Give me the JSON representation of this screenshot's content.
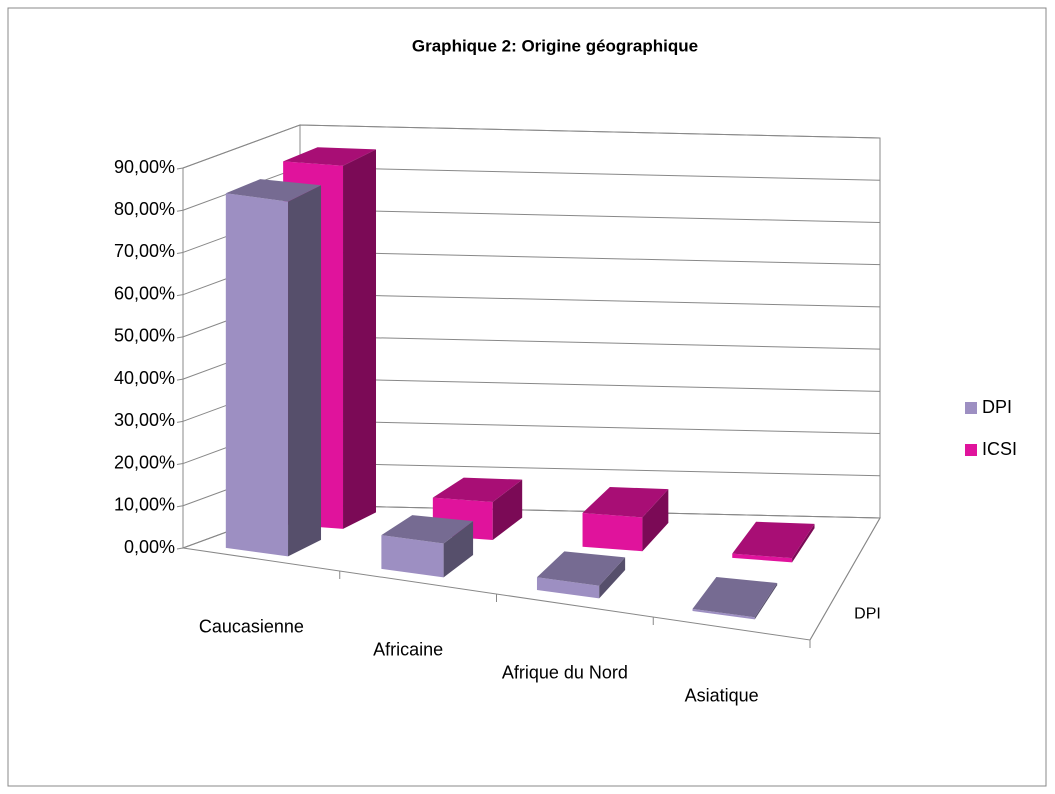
{
  "chart_data": {
    "type": "bar3d",
    "title": "Graphique 2: Origine géographique",
    "categories": [
      "Caucasienne",
      "Africaine",
      "Afrique du Nord",
      "Asiatique"
    ],
    "series": [
      {
        "name": "DPI",
        "color": "#9d8fc2",
        "values": [
          84,
          8,
          3,
          0.5
        ]
      },
      {
        "name": "ICSI",
        "color": "#e0139c",
        "values": [
          86,
          9,
          8,
          1
        ]
      }
    ],
    "depth_tick_labels": [
      "DPI"
    ],
    "ylim": [
      0,
      90
    ],
    "yticks": [
      {
        "value": 0,
        "label": "0,00%"
      },
      {
        "value": 10,
        "label": "10,00%"
      },
      {
        "value": 20,
        "label": "20,00%"
      },
      {
        "value": 30,
        "label": "30,00%"
      },
      {
        "value": 40,
        "label": "40,00%"
      },
      {
        "value": 50,
        "label": "50,00%"
      },
      {
        "value": 60,
        "label": "60,00%"
      },
      {
        "value": 70,
        "label": "70,00%"
      },
      {
        "value": 80,
        "label": "80,00%"
      },
      {
        "value": 90,
        "label": "90,00%"
      }
    ],
    "grid": true,
    "legend": "right"
  }
}
